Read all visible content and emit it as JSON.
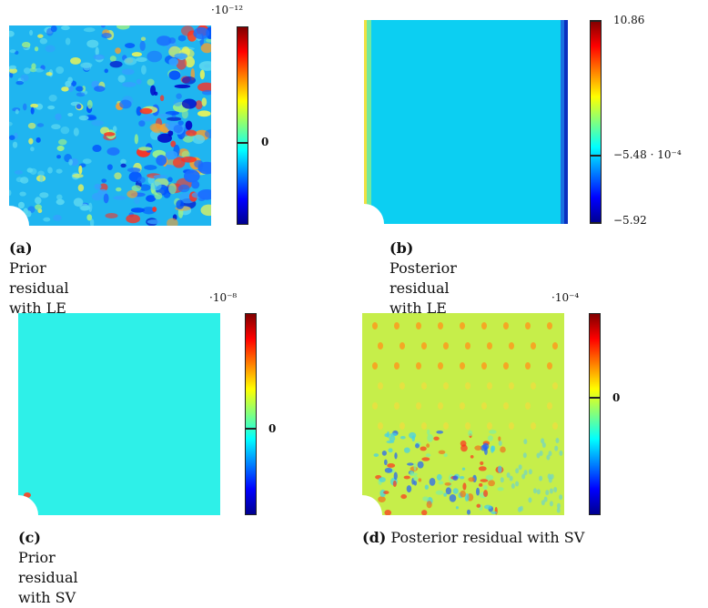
{
  "panels": [
    {
      "id": "a",
      "exponent": "·10⁻¹²",
      "colorbar_labels": [
        "0"
      ],
      "caption_tag": "(a)",
      "caption_text": "Prior residual with LE"
    },
    {
      "id": "b",
      "exponent": "",
      "colorbar_labels": [
        "10.86",
        "−5.48 · 10⁻⁴",
        "−5.92"
      ],
      "caption_tag": "(b)",
      "caption_text": "Posterior residual with LE"
    },
    {
      "id": "c",
      "exponent": "·10⁻⁸",
      "colorbar_labels": [
        "0"
      ],
      "caption_tag": "(c)",
      "caption_text": "Prior residual with SV"
    },
    {
      "id": "d",
      "exponent": "·10⁻⁴",
      "colorbar_labels": [
        "0"
      ],
      "caption_tag": "(d)",
      "caption_text": "Posterior residual with SV"
    }
  ],
  "colors": {
    "jet": [
      "#00008f",
      "#0000ff",
      "#0080ff",
      "#00ffff",
      "#80ff80",
      "#ffff00",
      "#ff8000",
      "#ff0000",
      "#800000"
    ],
    "field_a_base": "#1fb5f0",
    "field_b_base": "#0ccff2",
    "field_c_base": "#2ef0e8",
    "field_d_base": "#c6ee4a"
  }
}
